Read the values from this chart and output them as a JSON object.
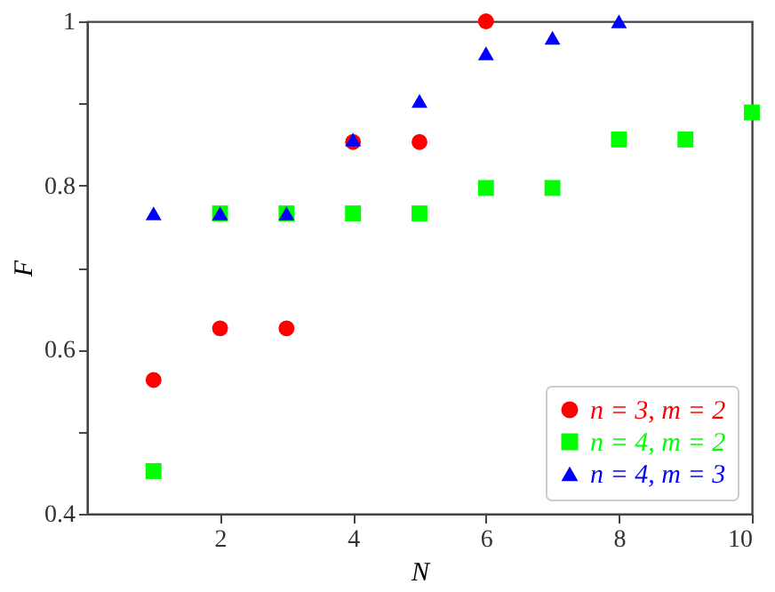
{
  "chart_data": {
    "type": "scatter",
    "xlabel": "N",
    "ylabel": "F",
    "x": [
      1,
      2,
      3,
      4,
      5,
      6,
      7,
      8,
      9,
      10
    ],
    "series": [
      {
        "name": "n = 3, m = 2",
        "color": "#ff0000",
        "marker": "circle",
        "values": [
          0.563,
          0.626,
          0.626,
          0.853,
          0.853,
          1.0,
          null,
          null,
          null,
          null
        ]
      },
      {
        "name": "n = 4, m = 2",
        "color": "#00ff00",
        "marker": "square",
        "values": [
          0.452,
          0.766,
          0.766,
          0.766,
          0.766,
          0.797,
          0.797,
          0.856,
          0.856,
          0.889
        ]
      },
      {
        "name": "n = 4, m = 3",
        "color": "#0000ff",
        "marker": "triangle",
        "values": [
          0.766,
          0.766,
          0.766,
          0.856,
          0.903,
          0.961,
          0.98,
          1.0,
          null,
          null
        ]
      }
    ],
    "xlim": [
      0,
      10
    ],
    "xticks": [
      2,
      4,
      6,
      8,
      10
    ],
    "ylim": [
      0.4,
      1
    ],
    "yticks": [
      0.4,
      {
        "value": 0.5,
        "label": null
      },
      0.6,
      {
        "value": 0.7,
        "label": null
      },
      0.8,
      {
        "value": 0.9,
        "label": null
      },
      1
    ],
    "grid": false,
    "legend": "bottom right"
  }
}
